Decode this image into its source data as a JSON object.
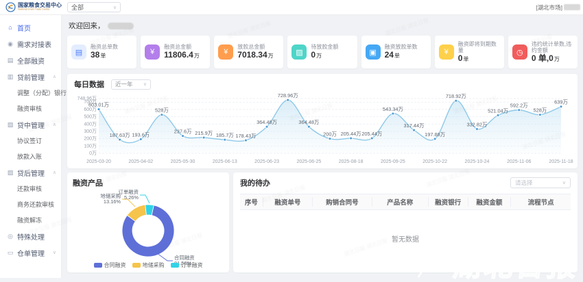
{
  "header": {
    "brand_title": "国家粮食交易中心",
    "brand_subtitle": "National Grain Trade Center",
    "market_select_value": "全部",
    "user_market_prefix": "[湖北市场]"
  },
  "sidebar": {
    "items": [
      {
        "label": "首页",
        "icon": "home-icon",
        "active": true,
        "type": "item"
      },
      {
        "label": "需求对接表",
        "icon": "user-icon",
        "type": "item"
      },
      {
        "label": "全部融资",
        "icon": "document-icon",
        "type": "item"
      },
      {
        "label": "贷前管理",
        "icon": "folder-icon",
        "type": "group"
      },
      {
        "label": "调整（分配）银行",
        "type": "child"
      },
      {
        "label": "融资审核",
        "type": "child"
      },
      {
        "label": "贷中管理",
        "icon": "layers-icon",
        "type": "group"
      },
      {
        "label": "协议签订",
        "type": "child"
      },
      {
        "label": "放款入账",
        "type": "child"
      },
      {
        "label": "贷后管理",
        "icon": "wallet-icon",
        "type": "group"
      },
      {
        "label": "还款审核",
        "type": "child"
      },
      {
        "label": "商务还款审核",
        "type": "child"
      },
      {
        "label": "融资解冻",
        "type": "child"
      },
      {
        "label": "特殊处理",
        "icon": "pin-icon",
        "type": "item"
      },
      {
        "label": "仓单管理",
        "icon": "box-icon",
        "type": "group-collapsed"
      }
    ]
  },
  "main": {
    "welcome_prefix": "欢迎回来，"
  },
  "stats": [
    {
      "label": "融资总单数",
      "value": "38",
      "unit": "单",
      "icon": "document-icon",
      "icon_bg": "#e3edff",
      "icon_color": "#4d7cfe"
    },
    {
      "label": "融资总金额",
      "value": "11806.4",
      "unit": "万",
      "icon": "money-icon",
      "icon_bg": "#b37feb",
      "icon_color": "#ffffff"
    },
    {
      "label": "放款总金额",
      "value": "7018.34",
      "unit": "万",
      "icon": "coin-icon",
      "icon_bg": "#ff9d4d",
      "icon_color": "#ffffff"
    },
    {
      "label": "待放款金额",
      "value": "0",
      "unit": "万",
      "icon": "wallet-icon",
      "icon_bg": "#4ed5c8",
      "icon_color": "#ffffff"
    },
    {
      "label": "融资放款单数",
      "value": "24",
      "unit": "单",
      "icon": "image-doc-icon",
      "icon_bg": "#45a8f5",
      "icon_color": "#ffffff"
    },
    {
      "label": "融资即将到期数量",
      "value": "0",
      "unit": "单",
      "icon": "coin-icon",
      "icon_bg": "#ffd04a",
      "icon_color": "#ffffff"
    },
    {
      "label": "违约统计单数,违约金额",
      "value": "0 单,0",
      "unit": "万",
      "icon": "clock-icon",
      "icon_bg": "#f25c5c",
      "icon_color": "#ffffff"
    }
  ],
  "chart_data": [
    {
      "type": "area",
      "title": "每日数据",
      "range_value": "近一年",
      "values": [
        603.01,
        187.63,
        193.6,
        528,
        237.6,
        215.9,
        185.7,
        178.43,
        364.48,
        728.96,
        364.48,
        200,
        205.44,
        205.44,
        543.34,
        317.44,
        197.88,
        718.92,
        332.82,
        521.04,
        592.2,
        528,
        639
      ],
      "point_labels": [
        "603.01万",
        "187.63万",
        "193.6万",
        "528万",
        "237.6万",
        "215.9万",
        "185.7万",
        "178.43万",
        "364.48万",
        "728.96万",
        "364.48万",
        "200万",
        "205.44万",
        "205.44万",
        "543.34万",
        "317.44万",
        "197.88万",
        "718.92万",
        "332.82万",
        "521.04万",
        "592.2万",
        "528万",
        "639万"
      ],
      "x_tick_labels": [
        "2025-03-20",
        "2025-04-02",
        "2025-05-30",
        "2025-06-13",
        "2025-06-23",
        "2025-06-25",
        "2025-08-18",
        "2025-09-25",
        "2025-10-22",
        "2025-10-24",
        "2025-11-06",
        "2025-11-18"
      ],
      "y_ticks": [
        0,
        100,
        200,
        300,
        400,
        500,
        600,
        700,
        748.96
      ],
      "y_tick_labels": [
        "0万",
        "100万",
        "200万",
        "300万",
        "400万",
        "500万",
        "600万",
        "700万",
        "748.96万"
      ],
      "ylim": [
        0,
        748.96
      ],
      "grid": true,
      "line_color": "#8fc9e8",
      "point_color": "#4e9ad1",
      "area_color": "#bddff2"
    },
    {
      "type": "pie",
      "title": "融资产品",
      "slices": [
        {
          "name": "合同融资",
          "value": 81.58,
          "label": "81.58%",
          "color": "#5e6fd8"
        },
        {
          "name": "地储采购",
          "value": 13.16,
          "label": "13.16%",
          "color": "#f6c44a"
        },
        {
          "name": "订单融资",
          "value": 5.26,
          "label": "5.26%",
          "color": "#30d3e6"
        }
      ],
      "legend": [
        "合同融资",
        "地储采购",
        "订单融资"
      ],
      "legend_position": "bottom"
    }
  ],
  "todos": {
    "title": "我的待办",
    "filter_placeholder": "请选择",
    "columns": [
      "序号",
      "融资单号",
      "购销合同号",
      "产品名称",
      "融资银行",
      "融资金额",
      "流程节点"
    ],
    "empty_text": "暂无数据"
  },
  "watermark": {
    "big_text": "湖北日报",
    "small_text": "湖北日报"
  },
  "colors": {
    "accent": "#4468e8",
    "background": "#f0f2f5"
  }
}
